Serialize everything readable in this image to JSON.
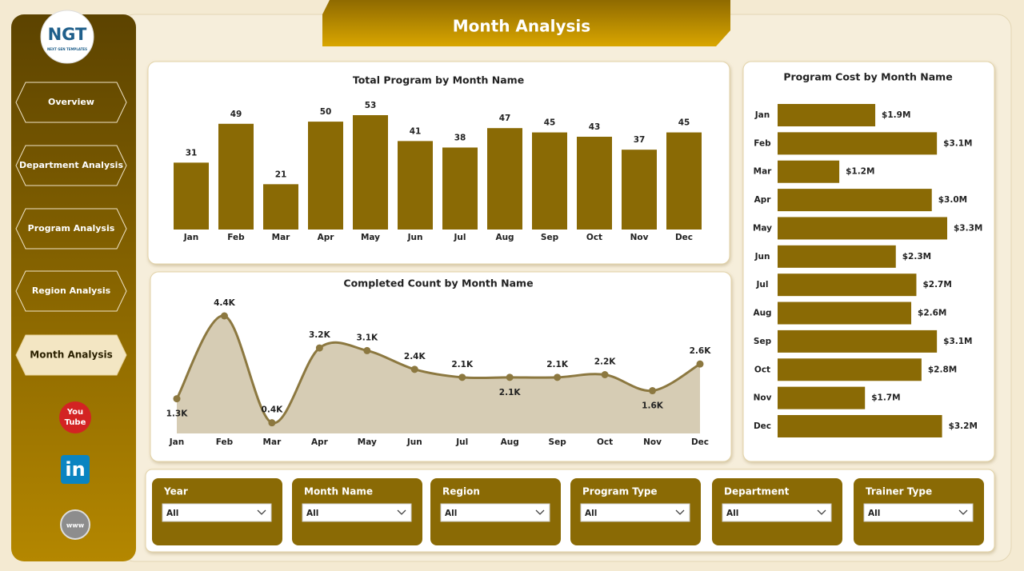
{
  "header": {
    "title": "Month Analysis"
  },
  "logo": {
    "mark": "NGT",
    "tagline": "NEXT GEN TEMPLATES"
  },
  "nav": {
    "items": [
      "Overview",
      "Department Analysis",
      "Program Analysis",
      "Region Analysis",
      "Month Analysis"
    ],
    "active": 4
  },
  "social": {
    "youtube": [
      "You",
      "Tube"
    ],
    "linkedin": "in",
    "web": "www"
  },
  "chart_data": [
    {
      "type": "bar",
      "title": "Total Program by Month Name",
      "categories": [
        "Jan",
        "Feb",
        "Mar",
        "Apr",
        "May",
        "Jun",
        "Jul",
        "Aug",
        "Sep",
        "Oct",
        "Nov",
        "Dec"
      ],
      "values": [
        31,
        49,
        21,
        50,
        53,
        41,
        38,
        47,
        45,
        43,
        37,
        45
      ],
      "color": "#8a6a05"
    },
    {
      "type": "area",
      "title": "Completed Count by Month Name",
      "categories": [
        "Jan",
        "Feb",
        "Mar",
        "Apr",
        "May",
        "Jun",
        "Jul",
        "Aug",
        "Sep",
        "Oct",
        "Nov",
        "Dec"
      ],
      "values": [
        1300,
        4400,
        400,
        3200,
        3100,
        2400,
        2100,
        2100,
        2100,
        2200,
        1600,
        2600
      ],
      "value_labels": [
        "1.3K",
        "4.4K",
        "0.4K",
        "3.2K",
        "3.1K",
        "2.4K",
        "2.1K",
        "2.1K",
        "2.1K",
        "2.2K",
        "1.6K",
        "2.6K"
      ],
      "color": "#8c7840",
      "fill": "#d6ccb4"
    },
    {
      "type": "barh",
      "title": "Program Cost by Month Name",
      "categories": [
        "Jan",
        "Feb",
        "Mar",
        "Apr",
        "May",
        "Jun",
        "Jul",
        "Aug",
        "Sep",
        "Oct",
        "Nov",
        "Dec"
      ],
      "values": [
        1900000,
        3100000,
        1200000,
        3000000,
        3300000,
        2300000,
        2700000,
        2600000,
        3100000,
        2800000,
        1700000,
        3200000
      ],
      "value_labels": [
        "$1.9M",
        "$3.1M",
        "$1.2M",
        "$3.0M",
        "$3.3M",
        "$2.3M",
        "$2.7M",
        "$2.6M",
        "$3.1M",
        "$2.8M",
        "$1.7M",
        "$3.2M"
      ],
      "color": "#8a6a05"
    }
  ],
  "filters": [
    {
      "label": "Year",
      "value": "All"
    },
    {
      "label": "Month Name",
      "value": "All"
    },
    {
      "label": "Region",
      "value": "All"
    },
    {
      "label": "Program Type",
      "value": "All"
    },
    {
      "label": "Department",
      "value": "All"
    },
    {
      "label": "Trainer Type",
      "value": "All"
    }
  ]
}
